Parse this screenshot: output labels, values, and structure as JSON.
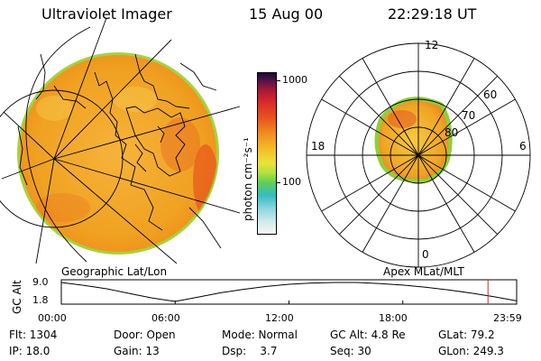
{
  "header": {
    "title": "Ultraviolet Imager",
    "date": "15 Aug 00",
    "time": "22:29:18 UT"
  },
  "colorbar": {
    "unit": "photon cm⁻²s⁻¹",
    "tick_labels": [
      "1000",
      "100"
    ]
  },
  "polar_plot": {
    "mlt_labels": {
      "top": "12",
      "left": "18",
      "right": "6",
      "bottom": "0"
    },
    "lat_labels": [
      "60",
      "70",
      "80"
    ]
  },
  "labels": {
    "geographic": "Geographic Lat/Lon",
    "apex": "Apex MLat/MLT"
  },
  "altitude_panel": {
    "ylabel": "GC Alt",
    "y_max_label": "9.0",
    "y_min_label": "1.8",
    "time_ticks": [
      "00:00",
      "06:00",
      "12:00",
      "18:00",
      "23:59"
    ],
    "curve_values": [
      9.0,
      7.9,
      6.6,
      4.8,
      3.1,
      1.8,
      3.4,
      5.1,
      6.4,
      7.5,
      8.3,
      8.8,
      9.0,
      9.0,
      8.6,
      8.0,
      7.2,
      6.2,
      5.0,
      3.6,
      2.0
    ],
    "current_time_hours": 22.49,
    "colors": {
      "curve": "#000000",
      "current_marker": "#d4282a"
    }
  },
  "info": {
    "row1": {
      "flt": "Flt: 1304",
      "door": "Door: Open",
      "mode": "Mode: Normal",
      "gcalt": "GC Alt: 4.8 Re",
      "glat": "GLat: 79.2"
    },
    "row2": {
      "ip": "IP: 18.0",
      "gain": "Gain: 13",
      "dsp": "Dsp:    3.7",
      "seq": "Seq: 30",
      "glon": "GLon: 249.3"
    }
  },
  "colors": {
    "image_base": "#f2a21c",
    "image_warm": "#e5411c",
    "image_edge": "#9bd23a"
  }
}
